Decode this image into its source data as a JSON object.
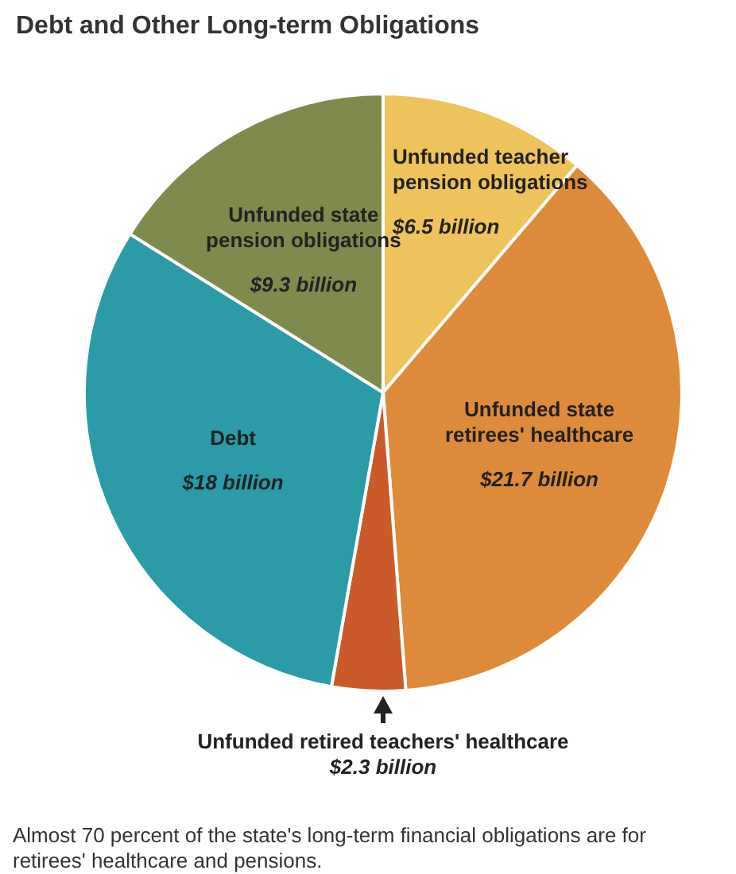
{
  "chart_data": {
    "type": "pie",
    "title": "Debt and Other Long-term Obligations",
    "categories": [
      "Unfunded teacher pension obligations",
      "Unfunded state retirees' healthcare",
      "Unfunded retired teachers' healthcare",
      "Debt",
      "Unfunded state pension obligations"
    ],
    "values": [
      6.5,
      21.7,
      2.3,
      18,
      9.3
    ],
    "colors": [
      "#efc35c",
      "#dd8b3b",
      "#cb5a2a",
      "#2a9ba7",
      "#7e8b4d"
    ],
    "value_labels": [
      "$6.5 billion",
      "$21.7 billion",
      "$2.3 billion",
      "$18 billion",
      "$9.3 billion"
    ],
    "annotations": [
      "Almost 70 percent of the state's long-term financial obligations are for retirees' healthcare and pensions."
    ]
  }
}
